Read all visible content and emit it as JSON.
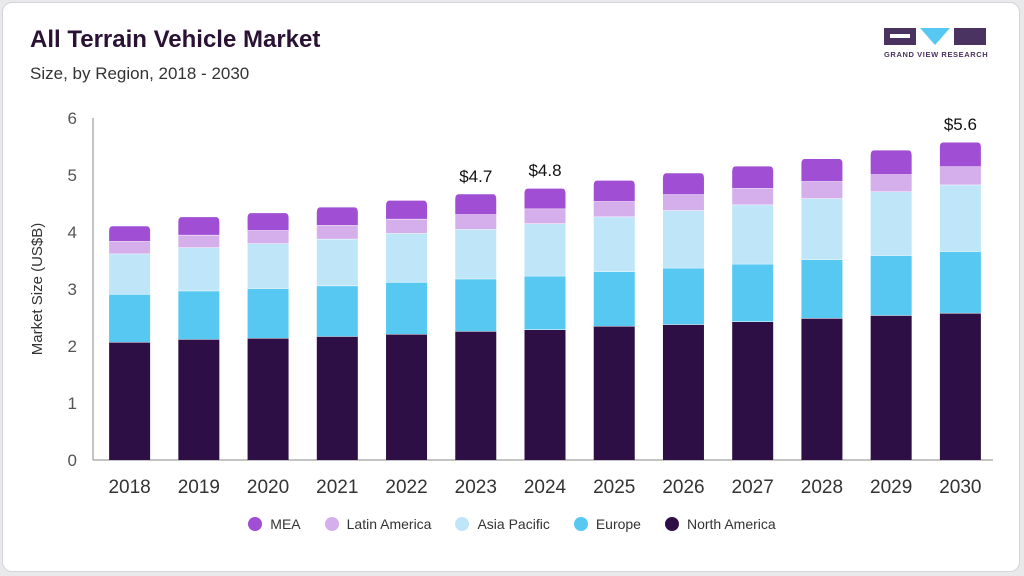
{
  "header": {
    "title": "All Terrain Vehicle Market",
    "subtitle": "Size, by Region, 2018 - 2030"
  },
  "logo": {
    "text": "GRAND VIEW RESEARCH"
  },
  "chart_data": {
    "type": "bar",
    "stacked": true,
    "categories": [
      "2018",
      "2019",
      "2020",
      "2021",
      "2022",
      "2023",
      "2024",
      "2025",
      "2026",
      "2027",
      "2028",
      "2029",
      "2030"
    ],
    "series": [
      {
        "name": "North America",
        "color": "#2d0f45",
        "values": [
          2.07,
          2.12,
          2.14,
          2.17,
          2.21,
          2.26,
          2.29,
          2.35,
          2.38,
          2.43,
          2.49,
          2.54,
          2.58
        ]
      },
      {
        "name": "Europe",
        "color": "#56c8f2",
        "values": [
          0.84,
          0.85,
          0.87,
          0.89,
          0.91,
          0.92,
          0.94,
          0.96,
          0.99,
          1.01,
          1.03,
          1.05,
          1.08
        ]
      },
      {
        "name": "Asia Pacific",
        "color": "#bfe6f8",
        "values": [
          0.71,
          0.76,
          0.79,
          0.82,
          0.86,
          0.87,
          0.92,
          0.96,
          1.01,
          1.04,
          1.07,
          1.12,
          1.17
        ]
      },
      {
        "name": "Latin America",
        "color": "#d5aeec",
        "values": [
          0.22,
          0.22,
          0.23,
          0.24,
          0.25,
          0.26,
          0.26,
          0.27,
          0.28,
          0.29,
          0.3,
          0.3,
          0.32
        ]
      },
      {
        "name": "MEA",
        "color": "#a04ed3",
        "values": [
          0.27,
          0.32,
          0.31,
          0.32,
          0.33,
          0.36,
          0.36,
          0.37,
          0.38,
          0.39,
          0.4,
          0.43,
          0.43
        ]
      }
    ],
    "annotations": [
      {
        "category": "2023",
        "label": "$4.7"
      },
      {
        "category": "2024",
        "label": "$4.8"
      },
      {
        "category": "2030",
        "label": "$5.6"
      }
    ],
    "ylabel": "Market Size (US$B)",
    "xlabel": "",
    "ylim": [
      0,
      6
    ],
    "yticks": [
      0,
      1,
      2,
      3,
      4,
      5,
      6
    ],
    "grid": false,
    "legend_position": "bottom",
    "legend_order": [
      "MEA",
      "Latin America",
      "Asia Pacific",
      "Europe",
      "North America"
    ]
  }
}
